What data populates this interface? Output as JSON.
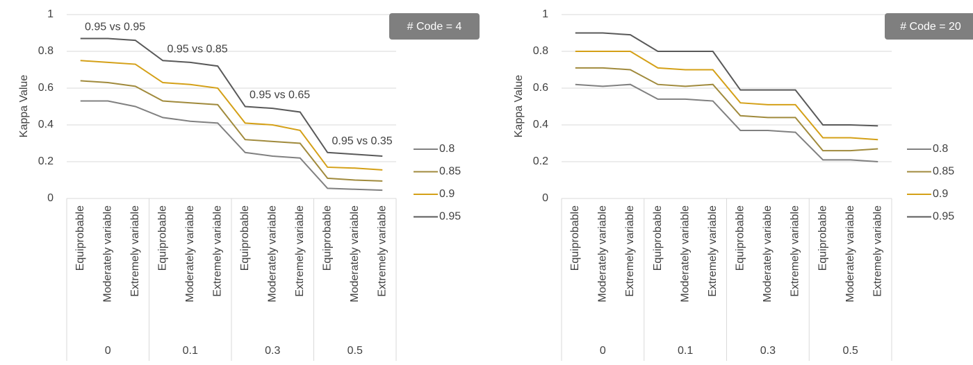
{
  "chart_data": [
    {
      "type": "line",
      "badge": "# Code = 4",
      "ylabel": "Kappa Value",
      "categories": [
        "Equiprobable",
        "Moderately variable",
        "Extremely variable",
        "Equiprobable",
        "Moderately variable",
        "Extremely variable",
        "Equiprobable",
        "Moderately variable",
        "Extremely variable",
        "Equiprobable",
        "Moderately variable",
        "Extremely variable"
      ],
      "groups": [
        "0",
        "0.1",
        "0.3",
        "0.5"
      ],
      "annotations": [
        "0.95 vs 0.95",
        "0.95 vs 0.85",
        "0.95 vs 0.65",
        "0.95 vs 0.35"
      ],
      "ylim": [
        0,
        1
      ],
      "yticks": [
        0,
        0.2,
        0.4,
        0.6,
        0.8,
        1
      ],
      "grid": true,
      "series": [
        {
          "name": "0.8",
          "color": "#808080",
          "values": [
            0.53,
            0.53,
            0.5,
            0.44,
            0.42,
            0.41,
            0.25,
            0.23,
            0.22,
            0.055,
            0.05,
            0.045
          ]
        },
        {
          "name": "0.85",
          "color": "#a08a3c",
          "values": [
            0.64,
            0.63,
            0.61,
            0.53,
            0.52,
            0.51,
            0.32,
            0.31,
            0.3,
            0.11,
            0.1,
            0.095
          ]
        },
        {
          "name": "0.9",
          "color": "#d4a017",
          "values": [
            0.75,
            0.74,
            0.73,
            0.63,
            0.62,
            0.6,
            0.41,
            0.4,
            0.37,
            0.17,
            0.165,
            0.155
          ]
        },
        {
          "name": "0.95",
          "color": "#595959",
          "values": [
            0.87,
            0.87,
            0.86,
            0.75,
            0.74,
            0.72,
            0.5,
            0.49,
            0.47,
            0.25,
            0.24,
            0.23
          ]
        }
      ]
    },
    {
      "type": "line",
      "badge": "# Code = 20",
      "ylabel": "Kappa Value",
      "categories": [
        "Equiprobable",
        "Moderately variable",
        "Extremely variable",
        "Equiprobable",
        "Moderately variable",
        "Extremely variable",
        "Equiprobable",
        "Moderately variable",
        "Extremely variable",
        "Equiprobable",
        "Moderately variable",
        "Extremely variable"
      ],
      "groups": [
        "0",
        "0.1",
        "0.3",
        "0.5"
      ],
      "ylim": [
        0,
        1
      ],
      "yticks": [
        0,
        0.2,
        0.4,
        0.6,
        0.8,
        1
      ],
      "grid": true,
      "series": [
        {
          "name": "0.8",
          "color": "#808080",
          "values": [
            0.62,
            0.61,
            0.62,
            0.54,
            0.54,
            0.53,
            0.37,
            0.37,
            0.36,
            0.21,
            0.21,
            0.2
          ]
        },
        {
          "name": "0.85",
          "color": "#a08a3c",
          "values": [
            0.71,
            0.71,
            0.7,
            0.62,
            0.61,
            0.62,
            0.45,
            0.44,
            0.44,
            0.26,
            0.26,
            0.27
          ]
        },
        {
          "name": "0.9",
          "color": "#d4a017",
          "values": [
            0.8,
            0.8,
            0.8,
            0.71,
            0.7,
            0.7,
            0.52,
            0.51,
            0.51,
            0.33,
            0.33,
            0.32
          ]
        },
        {
          "name": "0.95",
          "color": "#595959",
          "values": [
            0.9,
            0.9,
            0.89,
            0.8,
            0.8,
            0.8,
            0.59,
            0.59,
            0.59,
            0.4,
            0.4,
            0.395
          ]
        }
      ]
    }
  ]
}
